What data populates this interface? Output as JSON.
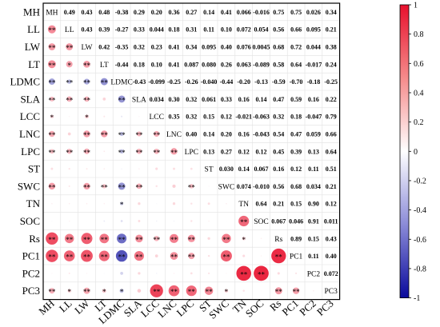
{
  "chart_data": {
    "type": "heatmap",
    "variables": [
      "MH",
      "LL",
      "LW",
      "LT",
      "LDMC",
      "SLA",
      "LCC",
      "LNC",
      "LPC",
      "ST",
      "SWC",
      "TN",
      "SOC",
      "Rs",
      "PC1",
      "PC2",
      "PC3"
    ],
    "upper_values": [
      [
        "",
        "0.49",
        "0.43",
        "0.48",
        "-0.38",
        "0.29",
        "0.20",
        "0.36",
        "0.27",
        "0.14",
        "0.41",
        "0.066",
        "-0.016",
        "0.75",
        "0.75",
        "0.026",
        "0.34"
      ],
      [
        "",
        "",
        "0.43",
        "0.39",
        "-0.27",
        "0.33",
        "0.044",
        "0.18",
        "0.31",
        "0.11",
        "0.10",
        "0.072",
        "0.054",
        "0.56",
        "0.66",
        "0.095",
        "0.21"
      ],
      [
        "",
        "",
        "",
        "0.42",
        "-0.35",
        "0.32",
        "0.23",
        "0.41",
        "0.34",
        "0.095",
        "0.40",
        "0.076",
        "0.0045",
        "0.68",
        "0.72",
        "0.044",
        "0.38"
      ],
      [
        "",
        "",
        "",
        "",
        "-0.44",
        "0.18",
        "0.10",
        "0.41",
        "0.087",
        "0.080",
        "0.26",
        "0.063",
        "-0.089",
        "0.58",
        "0.64",
        "-0.017",
        "0.24"
      ],
      [
        "",
        "",
        "",
        "",
        "",
        "-0.43",
        "-0.099",
        "-0.25",
        "-0.26",
        "-0.040",
        "-0.44",
        "-0.20",
        "-0.13",
        "-0.59",
        "-0.70",
        "-0.18",
        "-0.25"
      ],
      [
        "",
        "",
        "",
        "",
        "",
        "",
        "0.034",
        "0.30",
        "0.32",
        "0.061",
        "0.33",
        "0.16",
        "0.14",
        "0.47",
        "0.59",
        "0.16",
        "0.22"
      ],
      [
        "",
        "",
        "",
        "",
        "",
        "",
        "",
        "0.35",
        "0.32",
        "0.15",
        "0.12",
        "-0.021",
        "-0.063",
        "0.32",
        "0.18",
        "-0.047",
        "0.79"
      ],
      [
        "",
        "",
        "",
        "",
        "",
        "",
        "",
        "",
        "0.40",
        "0.14",
        "0.20",
        "0.16",
        "-0.043",
        "0.54",
        "0.47",
        "0.059",
        "0.66"
      ],
      [
        "",
        "",
        "",
        "",
        "",
        "",
        "",
        "",
        "",
        "0.13",
        "0.27",
        "0.12",
        "0.12",
        "0.45",
        "0.39",
        "0.13",
        "0.64"
      ],
      [
        "",
        "",
        "",
        "",
        "",
        "",
        "",
        "",
        "",
        "",
        "0.030",
        "0.14",
        "0.067",
        "0.16",
        "0.12",
        "0.11",
        "0.51"
      ],
      [
        "",
        "",
        "",
        "",
        "",
        "",
        "",
        "",
        "",
        "",
        "",
        "0.074",
        "-0.010",
        "0.56",
        "0.68",
        "0.034",
        "0.21"
      ],
      [
        "",
        "",
        "",
        "",
        "",
        "",
        "",
        "",
        "",
        "",
        "",
        "",
        "0.64",
        "0.21",
        "0.15",
        "0.90",
        "0.12"
      ],
      [
        "",
        "",
        "",
        "",
        "",
        "",
        "",
        "",
        "",
        "",
        "",
        "",
        "",
        "0.067",
        "0.046",
        "0.91",
        "0.011"
      ],
      [
        "",
        "",
        "",
        "",
        "",
        "",
        "",
        "",
        "",
        "",
        "",
        "",
        "",
        "",
        "0.89",
        "0.15",
        "0.43"
      ],
      [
        "",
        "",
        "",
        "",
        "",
        "",
        "",
        "",
        "",
        "",
        "",
        "",
        "",
        "",
        "",
        "0.11",
        "0.40"
      ],
      [
        "",
        "",
        "",
        "",
        "",
        "",
        "",
        "",
        "",
        "",
        "",
        "",
        "",
        "",
        "",
        "",
        "0.072"
      ],
      [
        "",
        "",
        "",
        "",
        "",
        "",
        "",
        "",
        "",
        "",
        "",
        "",
        "",
        "",
        "",
        "",
        ""
      ]
    ],
    "lower_significance": [
      [
        "",
        "",
        "",
        "",
        "",
        "",
        "",
        "",
        "",
        "",
        "",
        "",
        "",
        "",
        "",
        "",
        ""
      ],
      [
        "**",
        "",
        "",
        "",
        "",
        "",
        "",
        "",
        "",
        "",
        "",
        "",
        "",
        "",
        "",
        "",
        ""
      ],
      [
        "**",
        "**",
        "",
        "",
        "",
        "",
        "",
        "",
        "",
        "",
        "",
        "",
        "",
        "",
        "",
        "",
        ""
      ],
      [
        "**",
        "*",
        "**",
        "",
        "",
        "",
        "",
        "",
        "",
        "",
        "",
        "",
        "",
        "",
        "",
        "",
        ""
      ],
      [
        "**",
        "**",
        "**",
        "**",
        "",
        "",
        "",
        "",
        "",
        "",
        "",
        "",
        "",
        "",
        "",
        "",
        ""
      ],
      [
        "**",
        "**",
        "**",
        "",
        "**",
        "",
        "",
        "",
        "",
        "",
        "",
        "",
        "",
        "",
        "",
        "",
        ""
      ],
      [
        "*",
        "",
        "*",
        "",
        "",
        "",
        "",
        "",
        "",
        "",
        "",
        "",
        "",
        "",
        "",
        "",
        ""
      ],
      [
        "**",
        "",
        "**",
        "**",
        "**",
        "**",
        "**",
        "",
        "",
        "",
        "",
        "",
        "",
        "",
        "",
        "",
        ""
      ],
      [
        "**",
        "**",
        "**",
        "",
        "**",
        "**",
        "**",
        "**",
        "",
        "",
        "",
        "",
        "",
        "",
        "",
        "",
        ""
      ],
      [
        "",
        "",
        "",
        "",
        "",
        "",
        "",
        "",
        "",
        "",
        "",
        "",
        "",
        "",
        "",
        "",
        ""
      ],
      [
        "**",
        "",
        "**",
        "**",
        "**",
        "**",
        "",
        "",
        "**",
        "",
        "",
        "",
        "",
        "",
        "",
        "",
        ""
      ],
      [
        "",
        "",
        "",
        "",
        "*",
        "",
        "",
        "",
        "",
        "",
        "",
        "",
        "",
        "",
        "",
        "",
        ""
      ],
      [
        "",
        "",
        "",
        "",
        "",
        "",
        "",
        "",
        "",
        "",
        "",
        "**",
        "",
        "",
        "",
        "",
        ""
      ],
      [
        "**",
        "**",
        "**",
        "**",
        "**",
        "**",
        "**",
        "**",
        "**",
        "",
        "**",
        "*",
        "",
        "",
        "",
        "",
        ""
      ],
      [
        "**",
        "**",
        "**",
        "**",
        "**",
        "**",
        "",
        "**",
        "**",
        "",
        "**",
        "",
        "",
        "**",
        "",
        "",
        ""
      ],
      [
        "",
        "",
        "",
        "",
        "",
        "",
        "",
        "",
        "",
        "",
        "",
        "**",
        "**",
        "",
        "",
        "",
        ""
      ],
      [
        "**",
        "*",
        "**",
        "*",
        "*",
        "",
        "**",
        "**",
        "**",
        "**",
        "*",
        "",
        "",
        "**",
        "**",
        "",
        ""
      ]
    ],
    "colorbar": {
      "ticks": [
        "1",
        "0.8",
        "0.6",
        "0.4",
        "0.2",
        "0",
        "-0.2",
        "-0.4",
        "-0.6",
        "-0.8",
        "-1"
      ],
      "range": [
        -1,
        1
      ],
      "colors": {
        "positive": "#e8112d",
        "neutral": "#ffffff",
        "negative": "#0a0a9c"
      }
    },
    "title": "",
    "xlabel": "",
    "ylabel": ""
  }
}
